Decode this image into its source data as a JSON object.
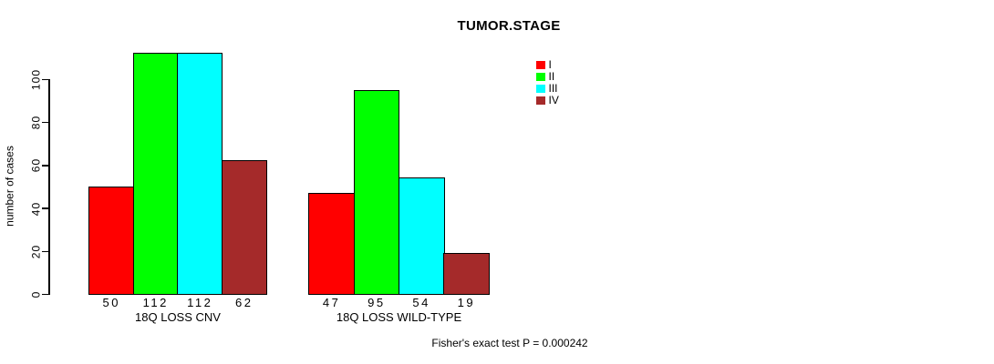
{
  "chart_data": {
    "type": "bar",
    "title": "TUMOR.STAGE",
    "xlabel": "",
    "ylabel": "number of cases",
    "ylim": [
      0,
      112
    ],
    "yticks": [
      0,
      20,
      40,
      60,
      80,
      100
    ],
    "grid": false,
    "legend_position": "top-right-of-plot",
    "show_bar_values": true,
    "background_color": "#FFFFFF",
    "text_color": "#000000",
    "categories": [
      "18Q LOSS CNV",
      "18Q LOSS WILD-TYPE"
    ],
    "series": [
      {
        "name": "I",
        "color": "#FF0000",
        "values": [
          50,
          47
        ]
      },
      {
        "name": "II",
        "color": "#00FF00",
        "values": [
          112,
          95
        ]
      },
      {
        "name": "III",
        "color": "#00FFFF",
        "values": [
          112,
          54
        ]
      },
      {
        "name": "IV",
        "color": "#A52A2A",
        "values": [
          62,
          19
        ]
      }
    ],
    "footnote": "Fisher's exact test P = 0.000242"
  }
}
